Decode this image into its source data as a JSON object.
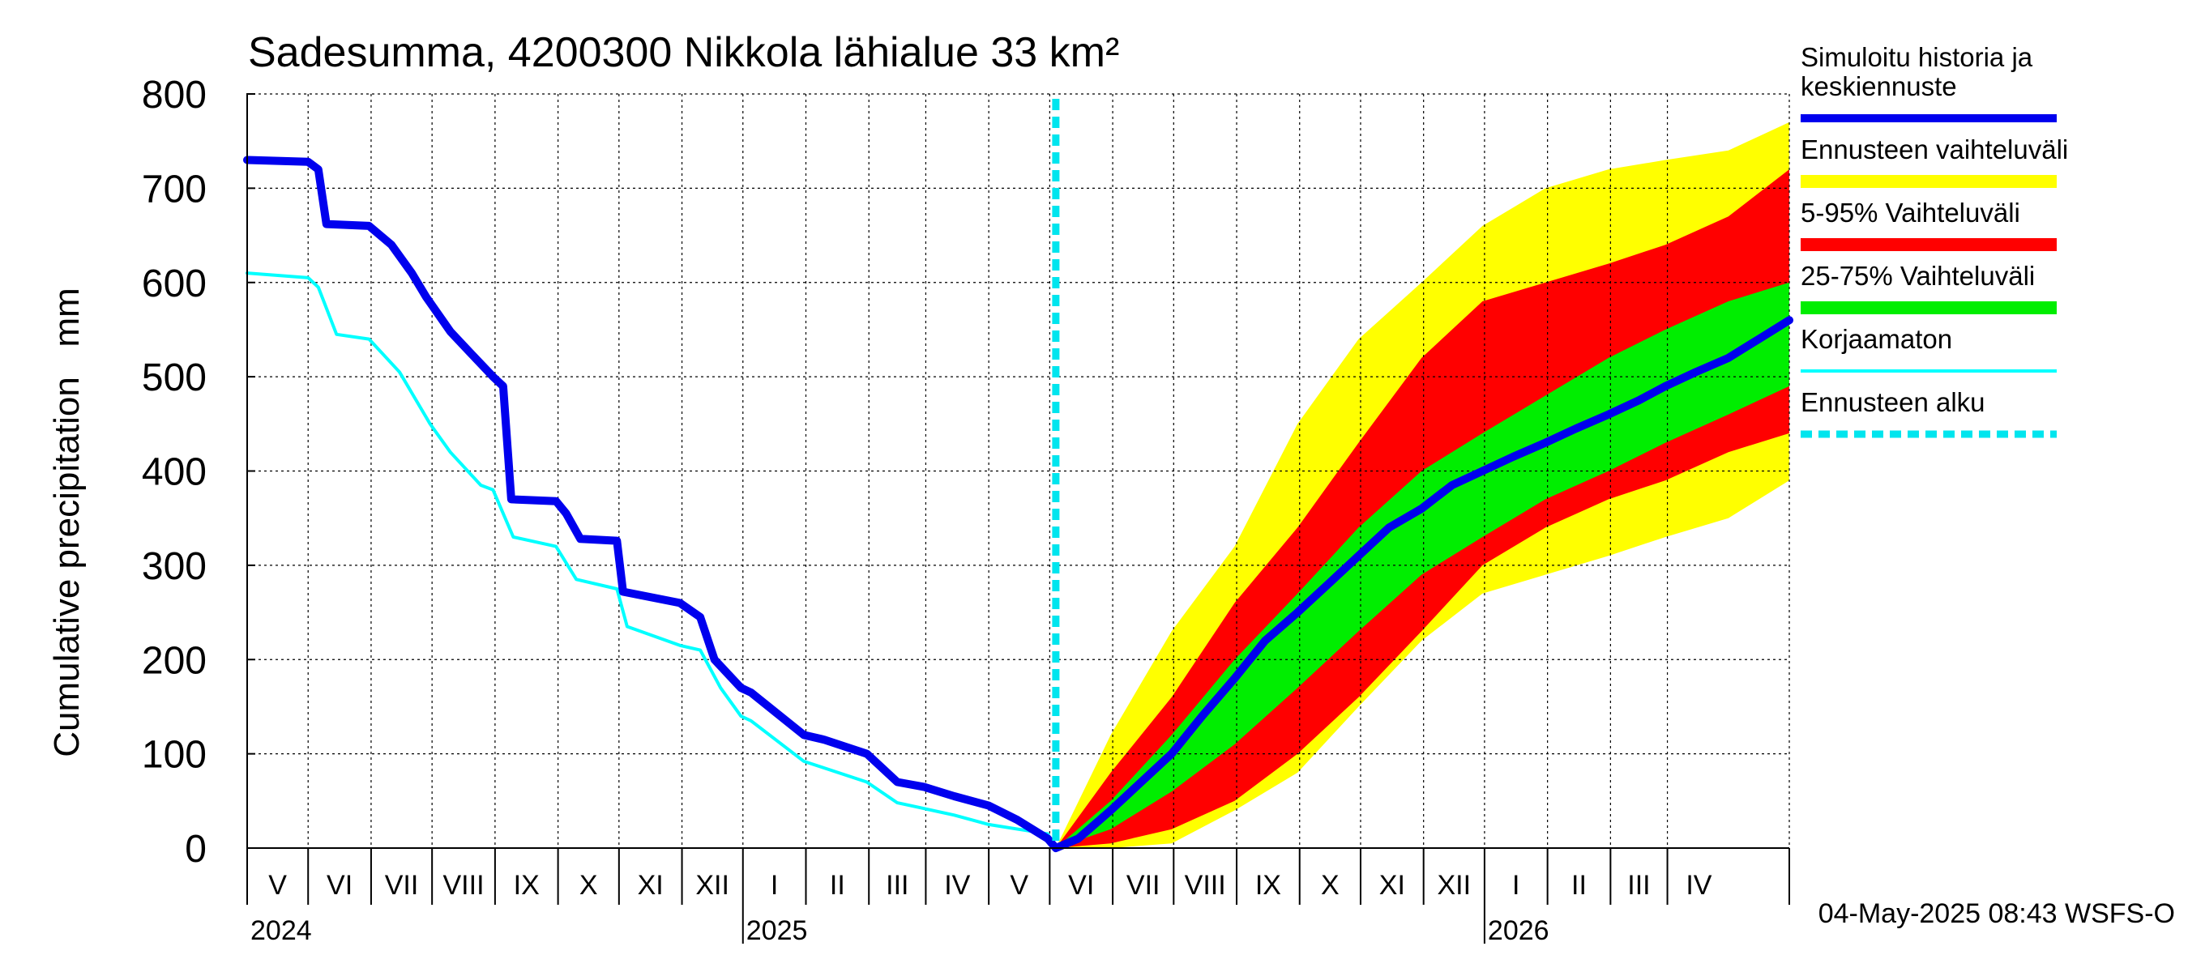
{
  "chart_data": {
    "type": "area",
    "title": "Sadesumma, 4200300 Nikkola lähialue 33 km²",
    "ylabel": "Cumulative precipitation   mm",
    "xlabel": "",
    "ylim": [
      0,
      800
    ],
    "yticks": [
      0,
      100,
      200,
      300,
      400,
      500,
      600,
      700,
      800
    ],
    "xlim": [
      "2024-04-01",
      "2026-04-30"
    ],
    "month_labels": [
      {
        "label": "V",
        "month": "2024-04"
      },
      {
        "label": "VI",
        "month": "2024-05"
      },
      {
        "label": "VII",
        "month": "2024-06"
      },
      {
        "label": "VIII",
        "month": "2024-07"
      },
      {
        "label": "IX",
        "month": "2024-08"
      },
      {
        "label": "X",
        "month": "2024-09"
      },
      {
        "label": "XI",
        "month": "2024-10"
      },
      {
        "label": "XII",
        "month": "2024-11"
      },
      {
        "label": "I",
        "month": "2024-12"
      },
      {
        "label": "II",
        "month": "2025-01"
      },
      {
        "label": "III",
        "month": "2025-02"
      },
      {
        "label": "IV",
        "month": "2025-03"
      },
      {
        "label": "V",
        "month": "2025-04"
      },
      {
        "label": "VI",
        "month": "2025-05"
      },
      {
        "label": "VII",
        "month": "2025-06"
      },
      {
        "label": "VIII",
        "month": "2025-07"
      },
      {
        "label": "IX",
        "month": "2025-08"
      },
      {
        "label": "X",
        "month": "2025-09"
      },
      {
        "label": "XI",
        "month": "2025-10"
      },
      {
        "label": "XII",
        "month": "2025-11"
      },
      {
        "label": "I",
        "month": "2025-12"
      },
      {
        "label": "II",
        "month": "2026-01"
      },
      {
        "label": "III",
        "month": "2026-02"
      },
      {
        "label": "IV",
        "month": "2026-03"
      }
    ],
    "year_labels": [
      {
        "label": "2024",
        "month": "2024-04"
      },
      {
        "label": "2025",
        "month": "2024-12"
      },
      {
        "label": "2026",
        "month": "2025-12"
      }
    ],
    "forecast_start": "2025-05-04",
    "series": [
      {
        "name": "Simuloitu historia ja keskiennuste",
        "color": "#0000ee",
        "x": [
          "2024-04-01",
          "2024-05-01",
          "2024-05-06",
          "2024-05-10",
          "2024-05-31",
          "2024-06-11",
          "2024-06-21",
          "2024-06-28",
          "2024-07-10",
          "2024-07-20",
          "2024-07-31",
          "2024-08-05",
          "2024-08-09",
          "2024-08-31",
          "2024-09-05",
          "2024-09-12",
          "2024-09-30",
          "2024-10-03",
          "2024-10-31",
          "2024-11-10",
          "2024-11-17",
          "2024-11-30",
          "2024-12-05",
          "2024-12-31",
          "2025-01-10",
          "2025-01-31",
          "2025-02-15",
          "2025-02-28",
          "2025-03-15",
          "2025-04-01",
          "2025-04-15",
          "2025-04-30",
          "2025-05-04",
          "2025-05-15",
          "2025-05-31",
          "2025-06-15",
          "2025-06-30",
          "2025-07-15",
          "2025-07-31",
          "2025-08-15",
          "2025-08-31",
          "2025-09-15",
          "2025-09-30",
          "2025-10-15",
          "2025-10-31",
          "2025-11-15",
          "2025-11-30",
          "2025-12-15",
          "2025-12-31",
          "2026-01-15",
          "2026-01-31",
          "2026-02-15",
          "2026-02-28",
          "2026-03-15",
          "2026-03-31",
          "2026-04-15",
          "2026-04-30"
        ],
        "values": [
          730,
          728,
          720,
          662,
          660,
          640,
          610,
          585,
          548,
          525,
          500,
          490,
          370,
          368,
          355,
          328,
          326,
          272,
          260,
          245,
          200,
          170,
          165,
          120,
          115,
          100,
          70,
          65,
          55,
          45,
          30,
          10,
          0,
          10,
          40,
          70,
          100,
          140,
          180,
          220,
          250,
          280,
          310,
          340,
          360,
          385,
          400,
          415,
          430,
          445,
          460,
          475,
          490,
          505,
          520,
          540,
          560
        ]
      },
      {
        "name": "Korjaamaton",
        "color": "#00ffff",
        "x": [
          "2024-04-01",
          "2024-05-01",
          "2024-05-06",
          "2024-05-15",
          "2024-05-31",
          "2024-06-15",
          "2024-06-30",
          "2024-07-10",
          "2024-07-25",
          "2024-07-31",
          "2024-08-10",
          "2024-08-31",
          "2024-09-10",
          "2024-09-30",
          "2024-10-05",
          "2024-10-31",
          "2024-11-10",
          "2024-11-20",
          "2024-11-30",
          "2024-12-05",
          "2024-12-31",
          "2025-01-10",
          "2025-01-31",
          "2025-02-15",
          "2025-02-28",
          "2025-03-15",
          "2025-04-01",
          "2025-04-30",
          "2025-05-04"
        ],
        "values": [
          610,
          605,
          595,
          545,
          540,
          505,
          450,
          420,
          385,
          380,
          330,
          320,
          285,
          275,
          235,
          215,
          210,
          170,
          140,
          135,
          92,
          85,
          70,
          48,
          42,
          35,
          25,
          15,
          0
        ]
      }
    ],
    "bands": [
      {
        "name": "Ennusteen vaihteluväli",
        "color": "#ffff00",
        "x": [
          "2025-05-04",
          "2025-05-31",
          "2025-06-30",
          "2025-07-31",
          "2025-08-31",
          "2025-09-30",
          "2025-10-31",
          "2025-11-30",
          "2025-12-31",
          "2026-01-31",
          "2026-02-28",
          "2026-03-31",
          "2026-04-30"
        ],
        "upper": [
          0,
          120,
          230,
          320,
          450,
          540,
          600,
          660,
          700,
          720,
          730,
          740,
          770
        ],
        "lower": [
          0,
          0,
          5,
          40,
          80,
          150,
          220,
          270,
          290,
          310,
          330,
          350,
          390
        ]
      },
      {
        "name": "5-95% Vaihteluväli",
        "color": "#ff0000",
        "x": [
          "2025-05-04",
          "2025-05-31",
          "2025-06-30",
          "2025-07-31",
          "2025-08-31",
          "2025-09-30",
          "2025-10-31",
          "2025-11-30",
          "2025-12-31",
          "2026-01-31",
          "2026-02-28",
          "2026-03-31",
          "2026-04-30"
        ],
        "upper": [
          0,
          80,
          160,
          260,
          340,
          430,
          520,
          580,
          600,
          620,
          640,
          670,
          720
        ],
        "lower": [
          0,
          5,
          20,
          50,
          100,
          160,
          230,
          300,
          340,
          370,
          390,
          420,
          440
        ]
      },
      {
        "name": "25-75% Vaihteluväli",
        "color": "#00ee00",
        "x": [
          "2025-05-04",
          "2025-05-31",
          "2025-06-30",
          "2025-07-31",
          "2025-08-31",
          "2025-09-30",
          "2025-10-31",
          "2025-11-30",
          "2025-12-31",
          "2026-01-31",
          "2026-02-28",
          "2026-03-31",
          "2026-04-30"
        ],
        "upper": [
          0,
          50,
          120,
          200,
          270,
          340,
          400,
          440,
          480,
          520,
          550,
          580,
          600
        ],
        "lower": [
          0,
          20,
          60,
          110,
          170,
          230,
          290,
          330,
          370,
          400,
          430,
          460,
          490
        ]
      }
    ],
    "legend": [
      {
        "label": "Simuloitu historia ja keskiennuste",
        "label_lines": [
          "Simuloitu historia ja",
          "keskiennuste"
        ],
        "color": "#0000ee",
        "style": "thick"
      },
      {
        "label": "Ennusteen vaihteluväli",
        "label_lines": [
          "Ennusteen vaihteluväli"
        ],
        "color": "#ffff00",
        "style": "band"
      },
      {
        "label": "5-95% Vaihteluväli",
        "label_lines": [
          "5-95% Vaihteluväli"
        ],
        "color": "#ff0000",
        "style": "band"
      },
      {
        "label": "25-75% Vaihteluväli",
        "label_lines": [
          "25-75% Vaihteluväli"
        ],
        "color": "#00ee00",
        "style": "band"
      },
      {
        "label": "Korjaamaton",
        "label_lines": [
          "Korjaamaton"
        ],
        "color": "#00ffff",
        "style": "thin"
      },
      {
        "label": "Ennusteen alku",
        "label_lines": [
          "Ennusteen alku"
        ],
        "color": "#00e5ee",
        "style": "dashed"
      }
    ],
    "legend_position": "right",
    "grid": true,
    "footer": "04-May-2025 08:43 WSFS-O"
  }
}
